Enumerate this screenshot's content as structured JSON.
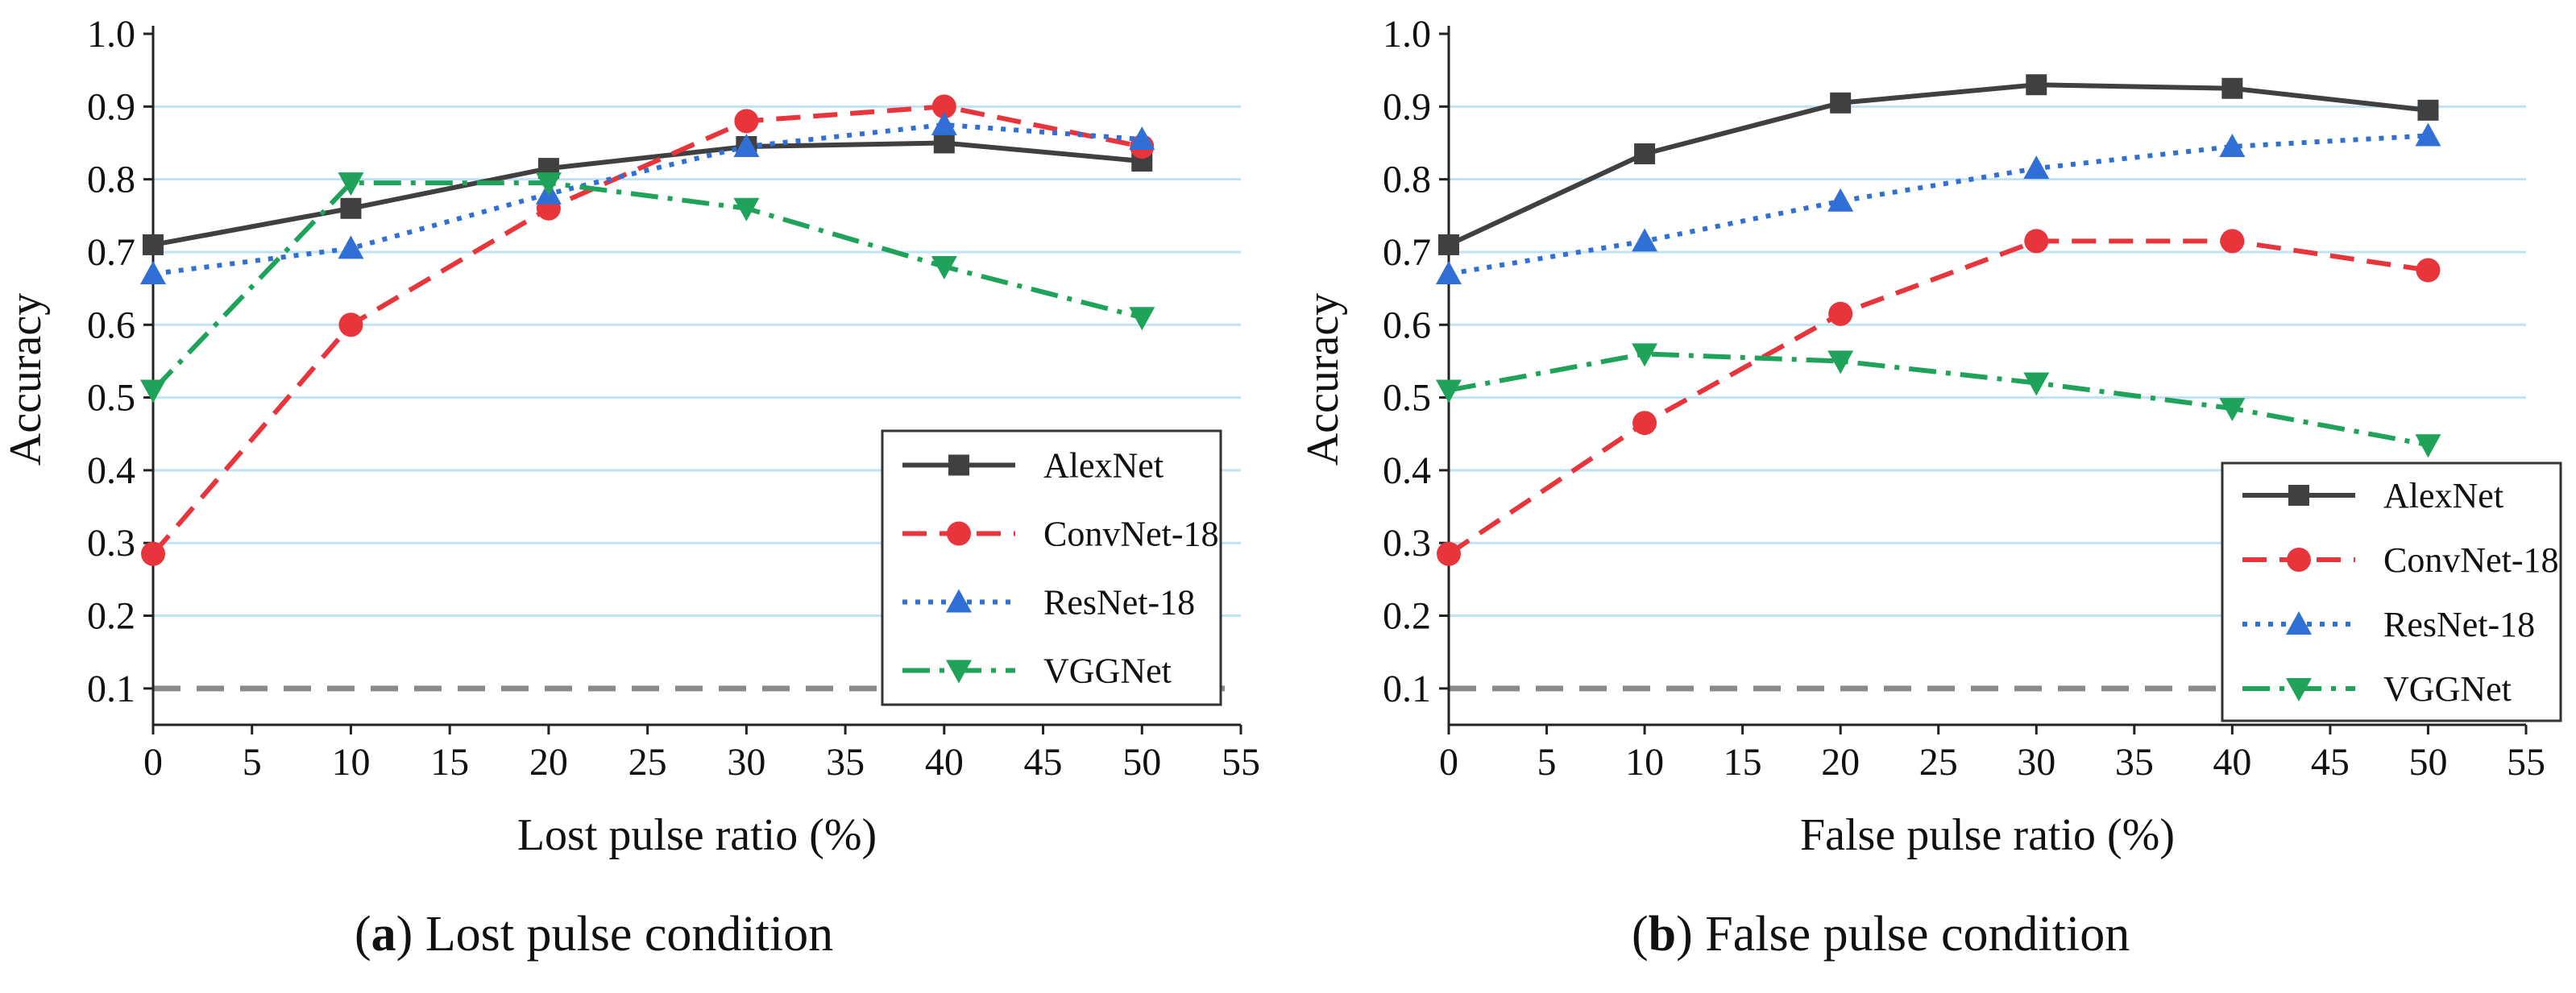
{
  "charts": [
    {
      "panel_letter": "a",
      "caption_text": "Lost pulse condition",
      "chart_data": {
        "type": "line",
        "xlabel": "Lost pulse ratio (%)",
        "ylabel": "Accuracy",
        "xlim": [
          0,
          55
        ],
        "ylim": [
          0.05,
          1.0
        ],
        "xticks": [
          0,
          5,
          10,
          15,
          20,
          25,
          30,
          35,
          40,
          45,
          50,
          55
        ],
        "yticks": [
          0.1,
          0.2,
          0.3,
          0.4,
          0.5,
          0.6,
          0.7,
          0.8,
          0.9,
          1.0
        ],
        "gridlines_y": [
          0.2,
          0.3,
          0.4,
          0.5,
          0.6,
          0.7,
          0.8,
          0.9
        ],
        "reference_line": 0.1,
        "legend_position": "lower-right",
        "x": [
          0,
          10,
          20,
          30,
          40,
          50
        ],
        "series": [
          {
            "name": "AlexNet",
            "color": "#404040",
            "marker": "square",
            "dash": "solid",
            "values": [
              0.71,
              0.76,
              0.815,
              0.845,
              0.85,
              0.825
            ]
          },
          {
            "name": "ConvNet-18",
            "color": "#e8353b",
            "marker": "circle",
            "dash": "dash",
            "values": [
              0.285,
              0.6,
              0.76,
              0.88,
              0.9,
              0.845
            ]
          },
          {
            "name": "ResNet-18",
            "color": "#2f6fd6",
            "marker": "triangle-up",
            "dash": "dot",
            "values": [
              0.67,
              0.705,
              0.78,
              0.845,
              0.875,
              0.855
            ]
          },
          {
            "name": "VGGNet",
            "color": "#1fa35a",
            "marker": "triangle-down",
            "dash": "dashdot",
            "values": [
              0.51,
              0.795,
              0.795,
              0.76,
              0.68,
              0.61
            ]
          }
        ]
      }
    },
    {
      "panel_letter": "b",
      "caption_text": "False pulse condition",
      "chart_data": {
        "type": "line",
        "xlabel": "False pulse ratio (%)",
        "ylabel": "Accuracy",
        "xlim": [
          0,
          55
        ],
        "ylim": [
          0.05,
          1.0
        ],
        "xticks": [
          0,
          5,
          10,
          15,
          20,
          25,
          30,
          35,
          40,
          45,
          50,
          55
        ],
        "yticks": [
          0.1,
          0.2,
          0.3,
          0.4,
          0.5,
          0.6,
          0.7,
          0.8,
          0.9,
          1.0
        ],
        "gridlines_y": [
          0.2,
          0.3,
          0.4,
          0.5,
          0.6,
          0.7,
          0.8,
          0.9
        ],
        "reference_line": 0.1,
        "legend_position": "lower-right",
        "x": [
          0,
          10,
          20,
          30,
          40,
          50
        ],
        "series": [
          {
            "name": "AlexNet",
            "color": "#404040",
            "marker": "square",
            "dash": "solid",
            "values": [
              0.71,
              0.835,
              0.905,
              0.93,
              0.925,
              0.895
            ]
          },
          {
            "name": "ConvNet-18",
            "color": "#e8353b",
            "marker": "circle",
            "dash": "dash",
            "values": [
              0.285,
              0.465,
              0.615,
              0.715,
              0.715,
              0.675
            ]
          },
          {
            "name": "ResNet-18",
            "color": "#2f6fd6",
            "marker": "triangle-up",
            "dash": "dot",
            "values": [
              0.67,
              0.715,
              0.77,
              0.815,
              0.845,
              0.86
            ]
          },
          {
            "name": "VGGNet",
            "color": "#1fa35a",
            "marker": "triangle-down",
            "dash": "dashdot",
            "values": [
              0.51,
              0.56,
              0.55,
              0.52,
              0.485,
              0.435
            ]
          }
        ]
      }
    }
  ]
}
